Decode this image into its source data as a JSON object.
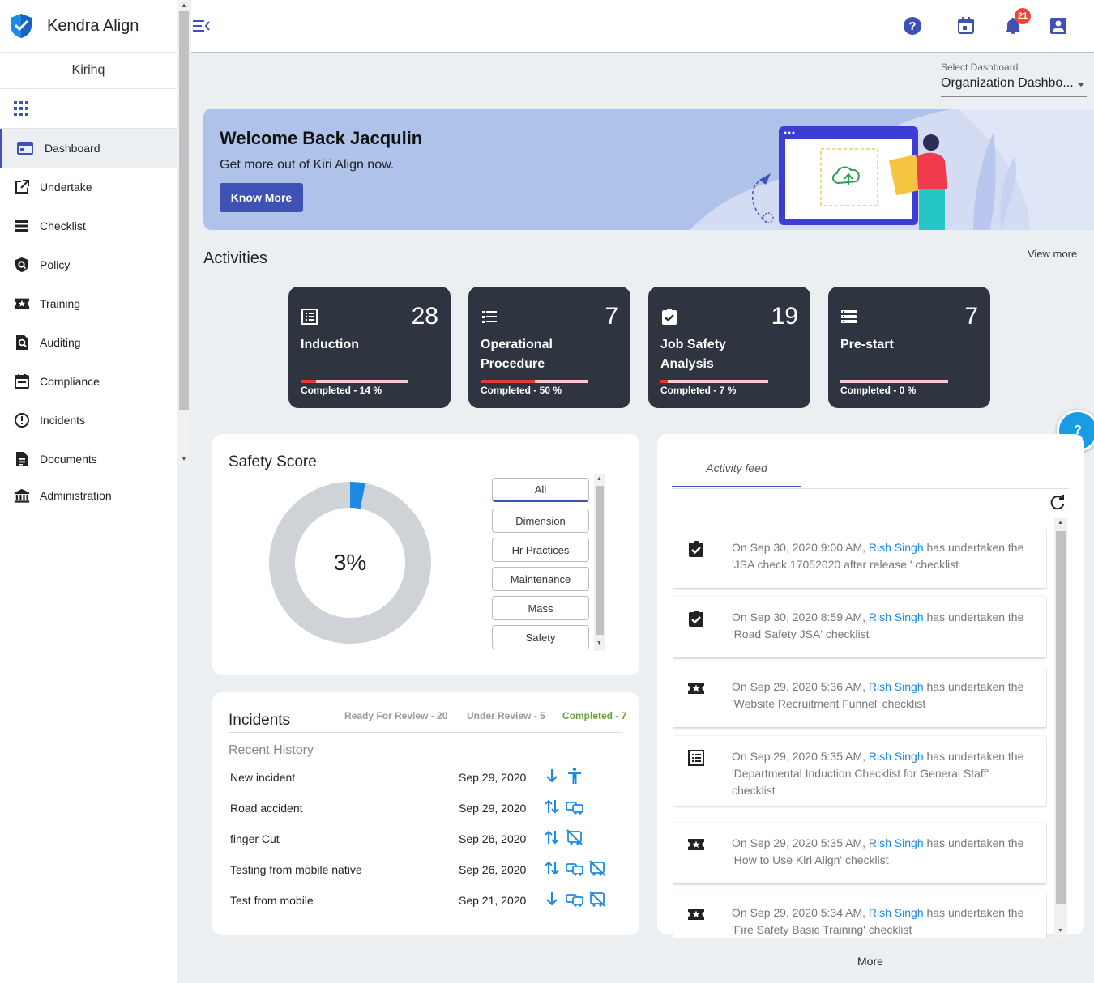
{
  "app": {
    "name": "Kendra Align",
    "org": "Kirihq"
  },
  "sidebar": {
    "items": [
      {
        "label": "Dashboard",
        "icon": "dashboard-icon"
      },
      {
        "label": "Undertake",
        "icon": "open-in-new-icon"
      },
      {
        "label": "Checklist",
        "icon": "list-icon"
      },
      {
        "label": "Policy",
        "icon": "policy-shield-icon"
      },
      {
        "label": "Training",
        "icon": "ticket-star-icon"
      },
      {
        "label": "Auditing",
        "icon": "find-in-page-icon"
      },
      {
        "label": "Compliance",
        "icon": "calendar-icon"
      },
      {
        "label": "Incidents",
        "icon": "alert-circle-icon"
      },
      {
        "label": "Documents",
        "icon": "document-icon"
      },
      {
        "label": "Administration",
        "icon": "bank-icon"
      }
    ]
  },
  "topbar": {
    "notification_count": "21"
  },
  "dashboard_select": {
    "label": "Select Dashboard",
    "value": "Organization Dashbo..."
  },
  "banner": {
    "title": "Welcome Back Jacqulin",
    "subtitle": "Get more out of Kiri Align now.",
    "button": "Know More"
  },
  "activities": {
    "title": "Activities",
    "view_more": "View more",
    "cards": [
      {
        "count": "28",
        "name": "Induction",
        "completed": "Completed - 14 %",
        "progress": 0.14
      },
      {
        "count": "7",
        "name": "Operational Procedure",
        "completed": "Completed - 50 %",
        "progress": 0.5
      },
      {
        "count": "19",
        "name": "Job Safety Analysis",
        "completed": "Completed - 7 %",
        "progress": 0.07
      },
      {
        "count": "7",
        "name": "Pre-start",
        "completed": "Completed - 0 %",
        "progress": 0
      }
    ]
  },
  "safety_score": {
    "title": "Safety Score",
    "value_label": "3%",
    "value": 0.03,
    "filters": [
      "All",
      "Dimension",
      "Hr Practices",
      "Maintenance",
      "Mass",
      "Safety"
    ]
  },
  "incidents": {
    "title": "Incidents",
    "ready": "Ready For Review - 20",
    "under": "Under Review - 5",
    "completed": "Completed - 7",
    "recent": "Recent History",
    "rows": [
      {
        "name": "New incident",
        "date": "Sep 29, 2020"
      },
      {
        "name": "Road accident",
        "date": "Sep 29, 2020"
      },
      {
        "name": "finger Cut",
        "date": "Sep 26, 2020"
      },
      {
        "name": "Testing from mobile native",
        "date": "Sep 26, 2020"
      },
      {
        "name": "Test from mobile",
        "date": "Sep 21, 2020"
      }
    ]
  },
  "feed": {
    "tab": "Activity feed",
    "items": [
      {
        "pre": "On Sep 30, 2020 9:00 AM, ",
        "user": "Rish Singh",
        "post": " has undertaken the 'JSA check 17052020 after release ' checklist",
        "icon": "assignment-check-icon"
      },
      {
        "pre": "On Sep 30, 2020 8:59 AM, ",
        "user": "Rish Singh",
        "post": " has undertaken the 'Road Safety JSA' checklist",
        "icon": "assignment-check-icon"
      },
      {
        "pre": "On Sep 29, 2020 5:36 AM, ",
        "user": "Rish Singh",
        "post": " has undertaken the 'Website Recruitment Funnel' checklist",
        "icon": "ticket-star-icon"
      },
      {
        "pre": "On Sep 29, 2020 5:35 AM, ",
        "user": "Rish Singh",
        "post": " has undertaken the 'Departmental Induction Checklist for General Staff' checklist",
        "icon": "list-alt-icon"
      },
      {
        "pre": "On Sep 29, 2020 5:35 AM, ",
        "user": "Rish Singh",
        "post": " has undertaken the 'How to Use Kiri Align' checklist",
        "icon": "ticket-star-icon"
      },
      {
        "pre": "On Sep 29, 2020 5:34 AM, ",
        "user": "Rish Singh",
        "post": " has undertaken the 'Fire Safety Basic Training' checklist",
        "icon": "ticket-star-icon"
      }
    ],
    "more": "More"
  },
  "help_label": "?"
}
